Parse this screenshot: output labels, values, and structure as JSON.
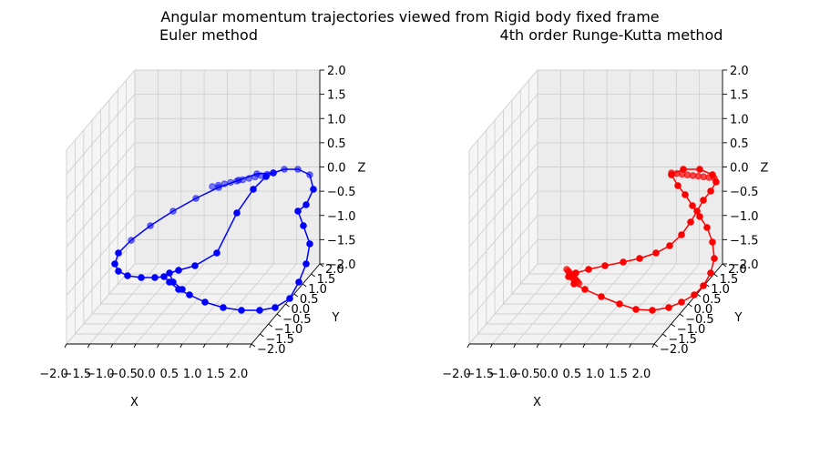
{
  "figure": {
    "title": "Angular momentum trajectories viewed from Rigid body fixed frame"
  },
  "chart_data": [
    {
      "type": "line3d",
      "title": "Euler method",
      "xlabel": "X",
      "ylabel": "Y",
      "zlabel": "Z",
      "xlim": [
        -2.0,
        2.0
      ],
      "ylim": [
        -2.0,
        2.0
      ],
      "zlim": [
        -2.0,
        2.0
      ],
      "xticks": [
        "−2.0",
        "−1.5",
        "−1.0",
        "−0.5",
        "0.0",
        "0.5",
        "1.0",
        "1.5",
        "2.0"
      ],
      "yticks": [
        "−2.0",
        "−1.5",
        "−1.0",
        "−0.5",
        "0.0",
        "0.5",
        "1.0",
        "1.5",
        "2.0"
      ],
      "zticks": [
        "−2.0",
        "−1.5",
        "−1.0",
        "−0.5",
        "0.0",
        "0.5",
        "1.0",
        "1.5",
        "2.0"
      ],
      "grid": true,
      "color": "#0000ff",
      "markers": true
    },
    {
      "type": "line3d",
      "title": "4th order Runge-Kutta method",
      "xlabel": "X",
      "ylabel": "Y",
      "zlabel": "Z",
      "xlim": [
        -2.0,
        2.0
      ],
      "ylim": [
        -2.0,
        2.0
      ],
      "zlim": [
        -2.0,
        2.0
      ],
      "xticks": [
        "−2.0",
        "−1.5",
        "−1.0",
        "−0.5",
        "0.0",
        "0.5",
        "1.0",
        "1.5",
        "2.0"
      ],
      "yticks": [
        "−2.0",
        "−1.5",
        "−1.0",
        "−0.5",
        "0.0",
        "0.5",
        "1.0",
        "1.5",
        "2.0"
      ],
      "zticks": [
        "−2.0",
        "−1.5",
        "−1.0",
        "−0.5",
        "0.0",
        "0.5",
        "1.0",
        "1.5",
        "2.0"
      ],
      "grid": true,
      "color": "#ff0000",
      "markers": true
    }
  ]
}
